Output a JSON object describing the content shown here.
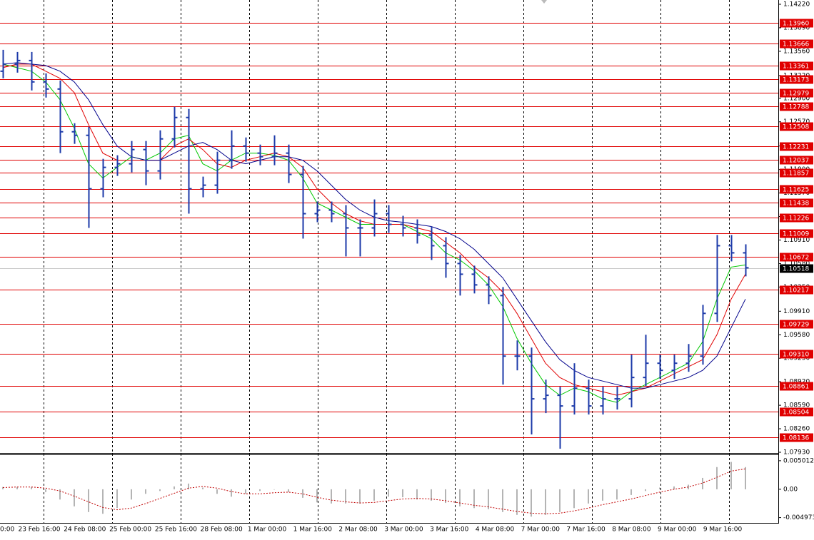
{
  "chart_data": {
    "type": "candlestick",
    "bar_color": "#1c3aa9",
    "ylim": [
      1.0792,
      1.1428
    ],
    "yticks": [
      {
        "value": 1.1422,
        "label": "1.14220"
      },
      {
        "value": 1.1389,
        "label": "1.13890"
      },
      {
        "value": 1.1356,
        "label": "1.13560"
      },
      {
        "value": 1.1322,
        "label": "1.13220"
      },
      {
        "value": 1.129,
        "label": "1.12900"
      },
      {
        "value": 1.1257,
        "label": "1.12570"
      },
      {
        "value": 1.1223,
        "label": "1.12230"
      },
      {
        "value": 1.119,
        "label": "1.11900"
      },
      {
        "value": 1.1157,
        "label": "1.11570"
      },
      {
        "value": 1.1124,
        "label": "1.11240"
      },
      {
        "value": 1.1091,
        "label": "1.10910"
      },
      {
        "value": 1.1058,
        "label": "1.10580"
      },
      {
        "value": 1.1025,
        "label": "1.10250"
      },
      {
        "value": 1.0991,
        "label": "1.09910"
      },
      {
        "value": 1.0958,
        "label": "1.09580"
      },
      {
        "value": 1.0925,
        "label": "1.09250"
      },
      {
        "value": 1.0892,
        "label": "1.08920"
      },
      {
        "value": 1.0859,
        "label": "1.08590"
      },
      {
        "value": 1.0826,
        "label": "1.08260"
      },
      {
        "value": 1.0793,
        "label": "1.07930"
      }
    ],
    "xtick_labels": [
      "0:00",
      "23 Feb 16:00",
      "24 Feb 08:00",
      "25 Feb 00:00",
      "25 Feb 16:00",
      "28 Feb 08:00",
      "1 Mar 00:00",
      "1 Mar 16:00",
      "2 Mar 08:00",
      "3 Mar 00:00",
      "3 Mar 16:00",
      "4 Mar 08:00",
      "7 Mar 00:00",
      "7 Mar 16:00",
      "8 Mar 08:00",
      "9 Mar 00:00",
      "9 Mar 16:00"
    ],
    "open": [
      1.1328,
      1.1338,
      1.1343,
      1.1313,
      1.1303,
      1.1243,
      1.1238,
      1.1163,
      1.1193,
      1.1198,
      1.1218,
      1.1188,
      1.1233,
      1.1263,
      1.1163,
      1.1168,
      1.1203,
      1.1223,
      1.1213,
      1.1208,
      1.1213,
      1.1183,
      1.1128,
      1.1133,
      1.1128,
      1.1108,
      1.1108,
      1.1128,
      1.1113,
      1.1108,
      1.1098,
      1.1083,
      1.1058,
      1.1043,
      1.1028,
      1.1013,
      1.0928,
      1.0928,
      1.0868,
      1.0873,
      1.0858,
      1.0883,
      1.0858,
      1.0868,
      1.0868,
      1.0898,
      1.0918,
      1.0908,
      1.0918,
      1.0928,
      1.0988,
      1.1083,
      1.1073
    ],
    "high": [
      1.1358,
      1.1355,
      1.1355,
      1.1325,
      1.1315,
      1.1255,
      1.125,
      1.1205,
      1.121,
      1.123,
      1.123,
      1.1245,
      1.1278,
      1.1275,
      1.118,
      1.1215,
      1.1245,
      1.1235,
      1.1225,
      1.1238,
      1.1225,
      1.1195,
      1.1145,
      1.1145,
      1.114,
      1.112,
      1.1148,
      1.114,
      1.1125,
      1.112,
      1.111,
      1.1095,
      1.107,
      1.1055,
      1.104,
      1.1025,
      1.095,
      1.094,
      1.0895,
      1.0885,
      1.0918,
      1.0895,
      1.0885,
      1.0885,
      1.093,
      1.0958,
      1.093,
      1.093,
      1.0945,
      1.1,
      1.1098,
      1.1098,
      1.1085
    ],
    "low": [
      1.1318,
      1.1326,
      1.1301,
      1.1291,
      1.1213,
      1.1226,
      1.1108,
      1.1151,
      1.1181,
      1.1186,
      1.1168,
      1.1176,
      1.1221,
      1.1128,
      1.1151,
      1.1156,
      1.1191,
      1.1201,
      1.1196,
      1.1196,
      1.1171,
      1.1093,
      1.1116,
      1.1116,
      1.1068,
      1.1068,
      1.1096,
      1.1101,
      1.1096,
      1.1086,
      1.1063,
      1.1038,
      1.1013,
      1.1016,
      1.1001,
      1.0888,
      1.0908,
      1.0818,
      1.0848,
      1.0798,
      1.0846,
      1.0846,
      1.0846,
      1.0853,
      1.0856,
      1.0886,
      1.0896,
      1.0896,
      1.0906,
      1.0916,
      1.0976,
      1.1061,
      1.104
    ],
    "close": [
      1.1338,
      1.1343,
      1.1313,
      1.1303,
      1.1243,
      1.1238,
      1.1163,
      1.1193,
      1.1198,
      1.1218,
      1.1188,
      1.1233,
      1.1263,
      1.1163,
      1.1168,
      1.1203,
      1.1223,
      1.1213,
      1.1208,
      1.1213,
      1.1183,
      1.1128,
      1.1133,
      1.1128,
      1.1108,
      1.1108,
      1.1128,
      1.1113,
      1.1108,
      1.1098,
      1.1083,
      1.1058,
      1.1043,
      1.1028,
      1.1013,
      1.0928,
      1.0928,
      1.0868,
      1.0873,
      1.0858,
      1.0883,
      1.0858,
      1.0868,
      1.0868,
      1.0898,
      1.0918,
      1.0908,
      1.0918,
      1.0928,
      1.0988,
      1.1083,
      1.1073,
      1.1052
    ],
    "moving_averages": [
      {
        "color": "#00c800",
        "values": [
          1.1338,
          1.1333,
          1.1328,
          1.1313,
          1.1288,
          1.1248,
          1.1198,
          1.1178,
          1.1193,
          1.1208,
          1.1203,
          1.1213,
          1.1233,
          1.1238,
          1.1198,
          1.1188,
          1.1203,
          1.1213,
          1.1213,
          1.121,
          1.1203,
          1.1178,
          1.1143,
          1.1133,
          1.1123,
          1.1113,
          1.1113,
          1.1113,
          1.1113,
          1.1103,
          1.1093,
          1.1073,
          1.1063,
          1.1048,
          1.1028,
          1.0998,
          1.0953,
          1.0918,
          1.0888,
          1.0873,
          1.0883,
          1.0878,
          1.0868,
          1.0863,
          1.0878,
          1.0888,
          1.0898,
          1.0908,
          1.0918,
          1.0948,
          1.1008,
          1.1053,
          1.1056
        ]
      },
      {
        "color": "#e00000",
        "values": [
          1.1333,
          1.1338,
          1.1338,
          1.1328,
          1.1318,
          1.1298,
          1.1253,
          1.1213,
          1.1203,
          1.1203,
          1.1203,
          1.1203,
          1.1223,
          1.1233,
          1.1218,
          1.1198,
          1.1193,
          1.1203,
          1.1208,
          1.1213,
          1.1208,
          1.1193,
          1.1163,
          1.1143,
          1.1128,
          1.1118,
          1.1113,
          1.1113,
          1.1113,
          1.1108,
          1.1103,
          1.1088,
          1.1073,
          1.1053,
          1.1038,
          1.1018,
          1.0988,
          1.0953,
          1.0918,
          1.0898,
          1.0888,
          1.0883,
          1.0878,
          1.0873,
          1.0878,
          1.0883,
          1.0893,
          1.0903,
          1.0913,
          1.0923,
          1.0958,
          1.1008,
          1.1043
        ]
      },
      {
        "color": "#00008b",
        "values": [
          1.1338,
          1.134,
          1.1338,
          1.1336,
          1.1328,
          1.1313,
          1.1288,
          1.1253,
          1.1223,
          1.1208,
          1.1203,
          1.1203,
          1.1213,
          1.1223,
          1.1228,
          1.1218,
          1.1203,
          1.1198,
          1.1203,
          1.1208,
          1.1208,
          1.1203,
          1.1188,
          1.1168,
          1.1148,
          1.1133,
          1.1123,
          1.1118,
          1.1116,
          1.1113,
          1.111,
          1.1103,
          1.1093,
          1.1078,
          1.1058,
          1.1038,
          1.1008,
          1.0978,
          1.0948,
          1.0923,
          1.0908,
          1.0898,
          1.0893,
          1.0888,
          1.0883,
          1.0883,
          1.0888,
          1.0893,
          1.0898,
          1.0908,
          1.0928,
          1.0968,
          1.1008
        ]
      }
    ],
    "level_color": "#e00000",
    "levels": [
      {
        "value": 1.1396,
        "label": "1.13960"
      },
      1.13666,
      1.13361,
      1.13173,
      1.12979,
      1.12788,
      1.12508,
      1.12231,
      1.12037,
      1.11857,
      1.11625,
      1.11438,
      1.11226,
      1.11009,
      1.10672,
      1.10217,
      1.09729,
      {
        "value": 1.0931,
        "label": "1.09310"
      },
      1.08861,
      1.08504,
      1.08136
    ],
    "current_price": 1.10518,
    "oscillator": {
      "ylim": [
        -0.0059,
        0.006
      ],
      "yticks": [
        0.005012,
        {
          "value": 0,
          "label": "0.00"
        },
        -0.004973
      ],
      "histogram_color": "#b4b4b4",
      "signal_color": "#c00000",
      "histogram": [
        0.0004,
        0.0004,
        0.0004,
        -0.0005,
        -0.0018,
        -0.003,
        -0.004,
        -0.0043,
        -0.0033,
        -0.0018,
        -0.0008,
        -0.0003,
        0.0005,
        0.001,
        0.0003,
        -0.0008,
        -0.0013,
        -0.0008,
        -0.0003,
        0,
        -0.0005,
        -0.0015,
        -0.0023,
        -0.0025,
        -0.0025,
        -0.0025,
        -0.002,
        -0.0013,
        -0.0014,
        -0.0018,
        -0.002,
        -0.0024,
        -0.003,
        -0.0033,
        -0.0035,
        -0.004,
        -0.0045,
        -0.0048,
        -0.0045,
        -0.004,
        -0.0033,
        -0.0025,
        -0.002,
        -0.0018,
        -0.001,
        -0.0003,
        0.0003,
        0.0005,
        0.0008,
        0.002,
        0.0039,
        0.0048,
        0.0039
      ],
      "signal": [
        0.0003,
        0.0004,
        0.0004,
        0.0002,
        -0.0003,
        -0.0012,
        -0.0022,
        -0.0032,
        -0.0036,
        -0.0033,
        -0.0025,
        -0.0016,
        -0.0007,
        0.0002,
        0.0005,
        0.0002,
        -0.0004,
        -0.0008,
        -0.0008,
        -0.0006,
        -0.0005,
        -0.0008,
        -0.0014,
        -0.0019,
        -0.0022,
        -0.0024,
        -0.0023,
        -0.002,
        -0.0017,
        -0.0016,
        -0.0017,
        -0.002,
        -0.0024,
        -0.0028,
        -0.0031,
        -0.0035,
        -0.0039,
        -0.0042,
        -0.0043,
        -0.0042,
        -0.0038,
        -0.0033,
        -0.0027,
        -0.0022,
        -0.0017,
        -0.0011,
        -0.0005,
        0,
        0.0004,
        0.0011,
        0.0021,
        0.0032,
        0.0036
      ]
    }
  }
}
